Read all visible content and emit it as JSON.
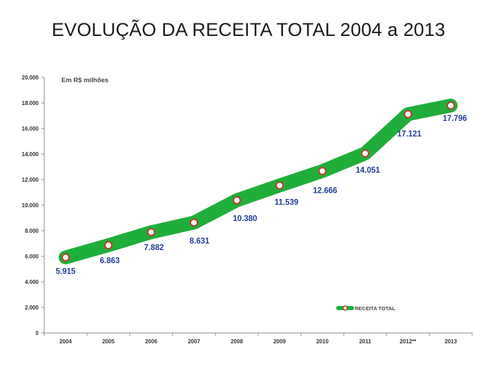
{
  "slide": {
    "title": "EVOLUÇÃO DA RECEITA TOTAL 2004 a 2013"
  },
  "chart_data": {
    "type": "line",
    "title": "EVOLUÇÃO DA RECEITA TOTAL 2004 a 2013",
    "unit_label": "Em R$ milhões",
    "categories": [
      "2004",
      "2005",
      "2006",
      "2007",
      "2008",
      "2009",
      "2010",
      "2011",
      "2012**",
      "2013"
    ],
    "series": [
      {
        "name": "RECEITA TOTAL",
        "values": [
          5915,
          6863,
          7882,
          8631,
          10380,
          11539,
          12666,
          14051,
          17121,
          17796
        ],
        "labels": [
          "5.915",
          "6.863",
          "7.882",
          "8.631",
          "10.380",
          "11.539",
          "12.666",
          "14.051",
          "17.121",
          "17.796"
        ],
        "line_color": "#1fae3a",
        "marker_edge": "#c0392b",
        "marker_fill": "#ffffff",
        "label_color": "#1f3c99"
      }
    ],
    "yticks": [
      0,
      2000,
      4000,
      6000,
      8000,
      10000,
      12000,
      14000,
      16000,
      18000,
      20000
    ],
    "ytick_labels": [
      "0",
      "2.000",
      "4.000",
      "6.000",
      "8.000",
      "10.000",
      "12.000",
      "14.000",
      "16.000",
      "18.000",
      "20.000"
    ],
    "ylim": [
      0,
      20000
    ],
    "legend": {
      "position": "bottom-right",
      "label": "RECEITA TOTAL"
    },
    "grid": false
  }
}
